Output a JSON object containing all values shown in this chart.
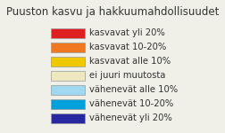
{
  "title": "Puuston kasvu ja hakkuumahdollisuudet",
  "legend_items": [
    {
      "label": "kasvavat yli 20%",
      "color": "#E02020"
    },
    {
      "label": "kasvavat 10-20%",
      "color": "#F07820"
    },
    {
      "label": "kasvavat alle 10%",
      "color": "#F0C800"
    },
    {
      "label": "ei juuri muutosta",
      "color": "#EDE8C0"
    },
    {
      "label": "vähenevät alle 10%",
      "color": "#A0D8F0"
    },
    {
      "label": "vähenevät 10-20%",
      "color": "#00A0DC"
    },
    {
      "label": "vähenevät yli 20%",
      "color": "#2828A0"
    }
  ],
  "title_fontsize": 8.5,
  "legend_fontsize": 7.2,
  "background_color": "#F0F0E8",
  "patch_edge_color": "#999999",
  "text_color": "#333333"
}
